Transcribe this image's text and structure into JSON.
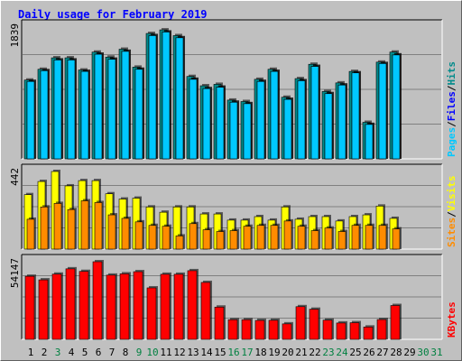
{
  "title": "Daily usage for February 2019",
  "colors": {
    "frame": "#c0c0c0",
    "plot_bg": "#c0c0c0",
    "title": "#0000ff",
    "pages": "#008080",
    "files": "#0000ff",
    "hits": "#008b8b",
    "visits": "#ffff00",
    "sites": "#ff8c00",
    "kbytes": "#ff0000",
    "weekday_label": "#000000",
    "weekend_label": "#008040"
  },
  "chart_data": [
    {
      "type": "bar",
      "name": "hits-files-pages",
      "ylabel_top": "1839",
      "legend": [
        "Pages",
        "/",
        "Files",
        "/",
        "Hits"
      ],
      "ylim": [
        0,
        1839
      ],
      "categories": [
        "1",
        "2",
        "3",
        "4",
        "5",
        "6",
        "7",
        "8",
        "9",
        "10",
        "11",
        "12",
        "13",
        "14",
        "15",
        "16",
        "17",
        "18",
        "19",
        "20",
        "21",
        "22",
        "23",
        "24",
        "25",
        "26",
        "27",
        "28",
        "29",
        "30",
        "31"
      ],
      "series": [
        {
          "name": "Pages",
          "values": [
            1110,
            1260,
            1420,
            1420,
            1250,
            1500,
            1430,
            1540,
            1290,
            1760,
            1810,
            1730,
            1160,
            1030,
            1050,
            830,
            810,
            1120,
            1260,
            870,
            1130,
            1330,
            950,
            1070,
            1230,
            520,
            1360,
            1500,
            0,
            0,
            0
          ]
        },
        {
          "name": "Files",
          "values": [
            1080,
            1230,
            1380,
            1380,
            1220,
            1460,
            1390,
            1500,
            1250,
            1720,
            1770,
            1690,
            1110,
            980,
            1000,
            790,
            770,
            1080,
            1220,
            830,
            1090,
            1290,
            910,
            1030,
            1200,
            480,
            1330,
            1450,
            0,
            0,
            0
          ]
        },
        {
          "name": "Hits",
          "values": [
            1100,
            1250,
            1410,
            1410,
            1240,
            1490,
            1420,
            1530,
            1280,
            1750,
            1800,
            1720,
            1150,
            1020,
            1040,
            820,
            800,
            1110,
            1250,
            860,
            1120,
            1320,
            940,
            1060,
            1220,
            510,
            1350,
            1490,
            0,
            0,
            0
          ]
        }
      ]
    },
    {
      "type": "bar",
      "name": "visits-sites",
      "ylabel_top": "442",
      "legend": [
        "Sites",
        "/",
        "Visits"
      ],
      "ylim": [
        0,
        442
      ],
      "series": [
        {
          "name": "Visits",
          "values": [
            310,
            385,
            442,
            360,
            390,
            390,
            315,
            285,
            290,
            240,
            210,
            240,
            240,
            200,
            200,
            165,
            165,
            185,
            165,
            240,
            170,
            185,
            185,
            160,
            185,
            195,
            245,
            175,
            0,
            0,
            0
          ]
        },
        {
          "name": "Sites",
          "values": [
            170,
            240,
            260,
            225,
            275,
            265,
            195,
            175,
            155,
            135,
            130,
            75,
            145,
            110,
            100,
            105,
            130,
            135,
            135,
            160,
            130,
            105,
            120,
            100,
            135,
            135,
            135,
            115,
            0,
            0,
            0
          ]
        }
      ]
    },
    {
      "type": "bar",
      "name": "kbytes",
      "ylabel_top": "54147",
      "legend": [
        "KBytes"
      ],
      "ylim": [
        0,
        54147
      ],
      "series": [
        {
          "name": "KBytes",
          "values": [
            44000,
            41500,
            45500,
            49200,
            47400,
            54147,
            44800,
            45700,
            47200,
            35900,
            45400,
            45400,
            47900,
            39700,
            22500,
            13700,
            13700,
            13200,
            13300,
            10800,
            22800,
            21000,
            13400,
            11400,
            11600,
            8600,
            13800,
            23600,
            0,
            0,
            0
          ]
        }
      ]
    }
  ],
  "day_labels": [
    {
      "t": "1",
      "w": false
    },
    {
      "t": "2",
      "w": false
    },
    {
      "t": "3",
      "w": true
    },
    {
      "t": "4",
      "w": false
    },
    {
      "t": "5",
      "w": false
    },
    {
      "t": "6",
      "w": false
    },
    {
      "t": "7",
      "w": false
    },
    {
      "t": "8",
      "w": false
    },
    {
      "t": "9",
      "w": true
    },
    {
      "t": "10",
      "w": true
    },
    {
      "t": "11",
      "w": false
    },
    {
      "t": "12",
      "w": false
    },
    {
      "t": "13",
      "w": false
    },
    {
      "t": "14",
      "w": false
    },
    {
      "t": "15",
      "w": false
    },
    {
      "t": "16",
      "w": true
    },
    {
      "t": "17",
      "w": true
    },
    {
      "t": "18",
      "w": false
    },
    {
      "t": "19",
      "w": false
    },
    {
      "t": "20",
      "w": false
    },
    {
      "t": "21",
      "w": false
    },
    {
      "t": "22",
      "w": false
    },
    {
      "t": "23",
      "w": true
    },
    {
      "t": "24",
      "w": true
    },
    {
      "t": "25",
      "w": false
    },
    {
      "t": "26",
      "w": false
    },
    {
      "t": "27",
      "w": false
    },
    {
      "t": "28",
      "w": false
    },
    {
      "t": "29",
      "w": false
    },
    {
      "t": "30",
      "w": true
    },
    {
      "t": "31",
      "w": true
    }
  ]
}
